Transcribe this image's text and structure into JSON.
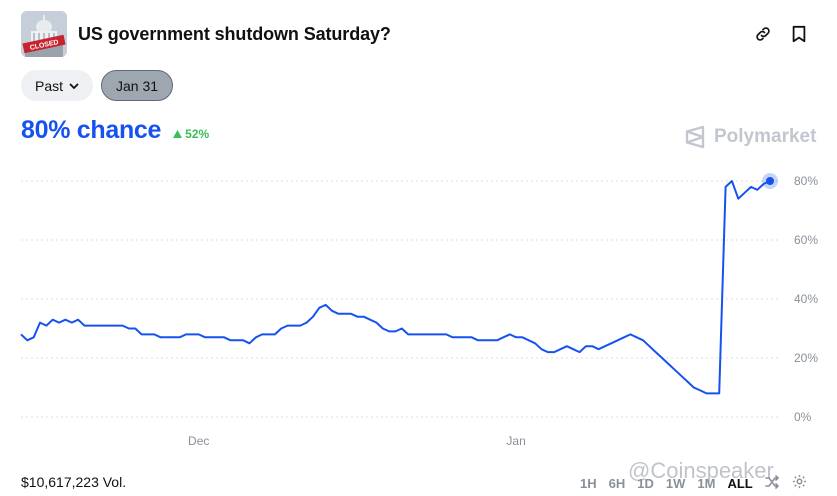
{
  "market": {
    "title": "US government shutdown Saturday?",
    "thumbnail_label": "CLOSED"
  },
  "filters": {
    "past_label": "Past",
    "date_label": "Jan 31"
  },
  "summary": {
    "chance_text": "80% chance",
    "delta_text": "52%",
    "brand": "Polymarket"
  },
  "colors": {
    "accent": "#1652f0",
    "up": "#3bbd5b"
  },
  "chart_data": {
    "type": "line",
    "xlabel": "",
    "ylabel": "",
    "ylim": [
      0,
      80
    ],
    "y_ticks": [
      "80%",
      "60%",
      "40%",
      "20%",
      "0%"
    ],
    "y_tick_values": [
      80,
      60,
      40,
      20,
      0
    ],
    "x_ticks": [
      "Dec",
      "Jan"
    ],
    "x_tick_index": [
      28,
      78
    ],
    "grid": true,
    "series": [
      {
        "values": [
          28,
          26,
          27,
          32,
          31,
          33,
          32,
          33,
          32,
          33,
          31,
          31,
          31,
          31,
          31,
          31,
          31,
          30,
          30,
          28,
          28,
          28,
          27,
          27,
          27,
          27,
          28,
          28,
          28,
          27,
          27,
          27,
          27,
          26,
          26,
          26,
          25,
          27,
          28,
          28,
          28,
          30,
          31,
          31,
          31,
          32,
          34,
          37,
          38,
          36,
          35,
          35,
          35,
          34,
          34,
          33,
          32,
          30,
          29,
          29,
          30,
          28,
          28,
          28,
          28,
          28,
          28,
          28,
          27,
          27,
          27,
          27,
          26,
          26,
          26,
          26,
          27,
          28,
          27,
          27,
          26,
          25,
          23,
          22,
          22,
          23,
          24,
          23,
          22,
          24,
          24,
          23,
          24,
          25,
          26,
          27,
          28,
          27,
          26,
          24,
          22,
          20,
          18,
          16,
          14,
          12,
          10,
          9,
          8,
          8,
          8,
          78,
          80,
          74,
          76,
          78,
          77,
          79,
          80
        ]
      }
    ],
    "current_value": 80
  },
  "footer": {
    "volume": "$10,617,223 Vol.",
    "ranges": [
      "1H",
      "6H",
      "1D",
      "1W",
      "1M",
      "ALL"
    ],
    "active_range": "ALL",
    "watermark": "@Coinspeaker"
  }
}
